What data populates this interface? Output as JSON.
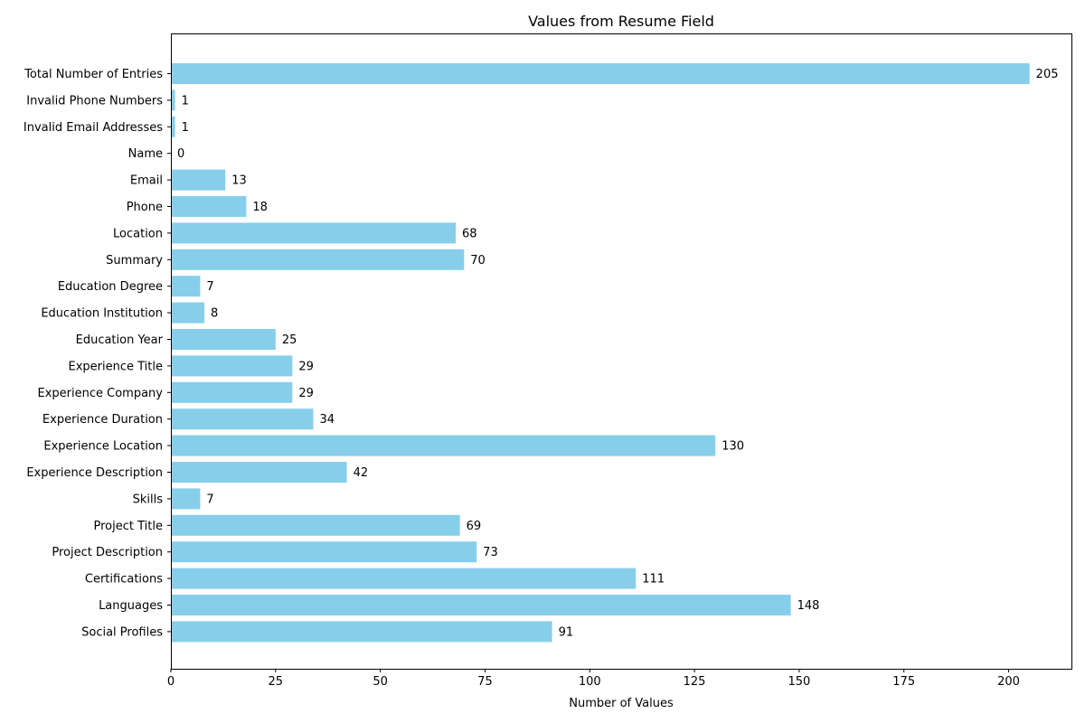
{
  "chart_data": {
    "type": "bar",
    "orientation": "horizontal",
    "title": "Values from Resume Field",
    "xlabel": "Number of Values",
    "ylabel": "",
    "xlim": [
      0,
      215
    ],
    "xticks": [
      0,
      25,
      50,
      75,
      100,
      125,
      150,
      175,
      200
    ],
    "bar_color": "#87ceeb",
    "grid": false,
    "categories": [
      "Total Number of Entries",
      "Invalid Phone Numbers",
      "Invalid Email Addresses",
      "Name",
      "Email",
      "Phone",
      "Location",
      "Summary",
      "Education Degree",
      "Education Institution",
      "Education Year",
      "Experience Title",
      "Experience Company",
      "Experience Duration",
      "Experience Location",
      "Experience Description",
      "Skills",
      "Project Title",
      "Project Description",
      "Certifications",
      "Languages",
      "Social Profiles"
    ],
    "values": [
      205,
      1,
      1,
      0,
      13,
      18,
      68,
      70,
      7,
      8,
      25,
      29,
      29,
      34,
      130,
      42,
      7,
      69,
      73,
      111,
      148,
      91
    ]
  }
}
